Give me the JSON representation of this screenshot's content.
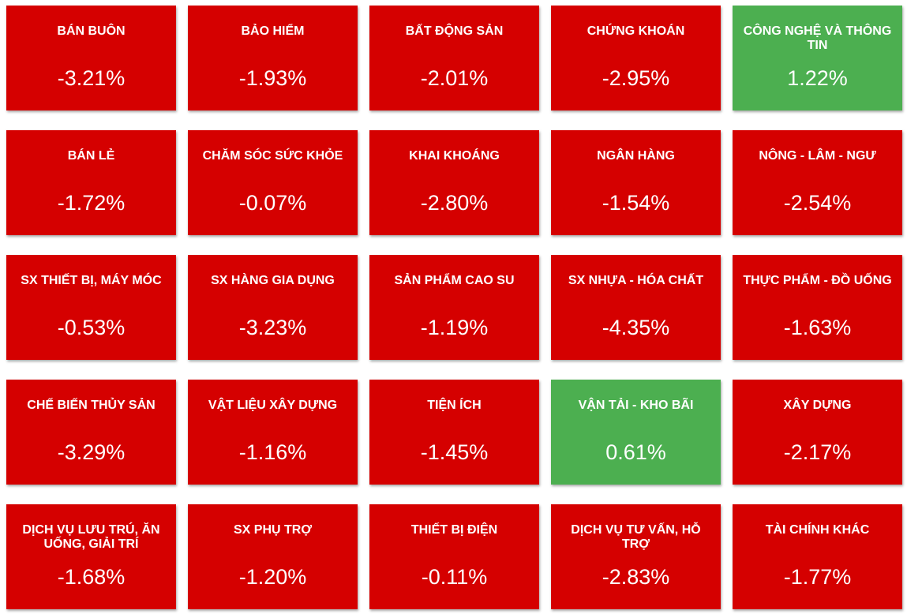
{
  "tiles": [
    {
      "label": "BÁN BUÔN",
      "change": "-3.21%",
      "color": "#d50000"
    },
    {
      "label": "BẢO HIỂM",
      "change": "-1.93%",
      "color": "#d50000"
    },
    {
      "label": "BẤT ĐỘNG SẢN",
      "change": "-2.01%",
      "color": "#d50000"
    },
    {
      "label": "CHỨNG KHOÁN",
      "change": "-2.95%",
      "color": "#d50000"
    },
    {
      "label": "CÔNG NGHỆ VÀ THÔNG TIN",
      "change": "1.22%",
      "color": "#4caf50"
    },
    {
      "label": "BÁN LẺ",
      "change": "-1.72%",
      "color": "#d50000"
    },
    {
      "label": "CHĂM SÓC SỨC KHỎE",
      "change": "-0.07%",
      "color": "#d50000"
    },
    {
      "label": "KHAI KHOÁNG",
      "change": "-2.80%",
      "color": "#d50000"
    },
    {
      "label": "NGÂN HÀNG",
      "change": "-1.54%",
      "color": "#d50000"
    },
    {
      "label": "NÔNG - LÂM - NGƯ",
      "change": "-2.54%",
      "color": "#d50000"
    },
    {
      "label": "SX THIẾT BỊ, MÁY MÓC",
      "change": "-0.53%",
      "color": "#d50000"
    },
    {
      "label": "SX HÀNG GIA DỤNG",
      "change": "-3.23%",
      "color": "#d50000"
    },
    {
      "label": "SẢN PHẨM CAO SU",
      "change": "-1.19%",
      "color": "#d50000"
    },
    {
      "label": "SX NHỰA - HÓA CHẤT",
      "change": "-4.35%",
      "color": "#d50000"
    },
    {
      "label": "THỰC PHẨM - ĐỒ UỐNG",
      "change": "-1.63%",
      "color": "#d50000"
    },
    {
      "label": "CHẾ BIẾN THỦY SẢN",
      "change": "-3.29%",
      "color": "#d50000"
    },
    {
      "label": "VẬT LIỆU XÂY DỰNG",
      "change": "-1.16%",
      "color": "#d50000"
    },
    {
      "label": "TIỆN ÍCH",
      "change": "-1.45%",
      "color": "#d50000"
    },
    {
      "label": "VẬN TẢI - KHO BÃI",
      "change": "0.61%",
      "color": "#4caf50"
    },
    {
      "label": "XÂY DỰNG",
      "change": "-2.17%",
      "color": "#d50000"
    },
    {
      "label": "DỊCH VỤ LƯU TRÚ, ĂN UỐNG, GIẢI TRÍ",
      "change": "-1.68%",
      "color": "#d50000"
    },
    {
      "label": "SX PHỤ TRỢ",
      "change": "-1.20%",
      "color": "#d50000"
    },
    {
      "label": "THIẾT BỊ ĐIỆN",
      "change": "-0.11%",
      "color": "#d50000"
    },
    {
      "label": "DỊCH VỤ TƯ VẤN, HỖ TRỢ",
      "change": "-2.83%",
      "color": "#d50000"
    },
    {
      "label": "TÀI CHÍNH KHÁC",
      "change": "-1.77%",
      "color": "#d50000"
    }
  ]
}
